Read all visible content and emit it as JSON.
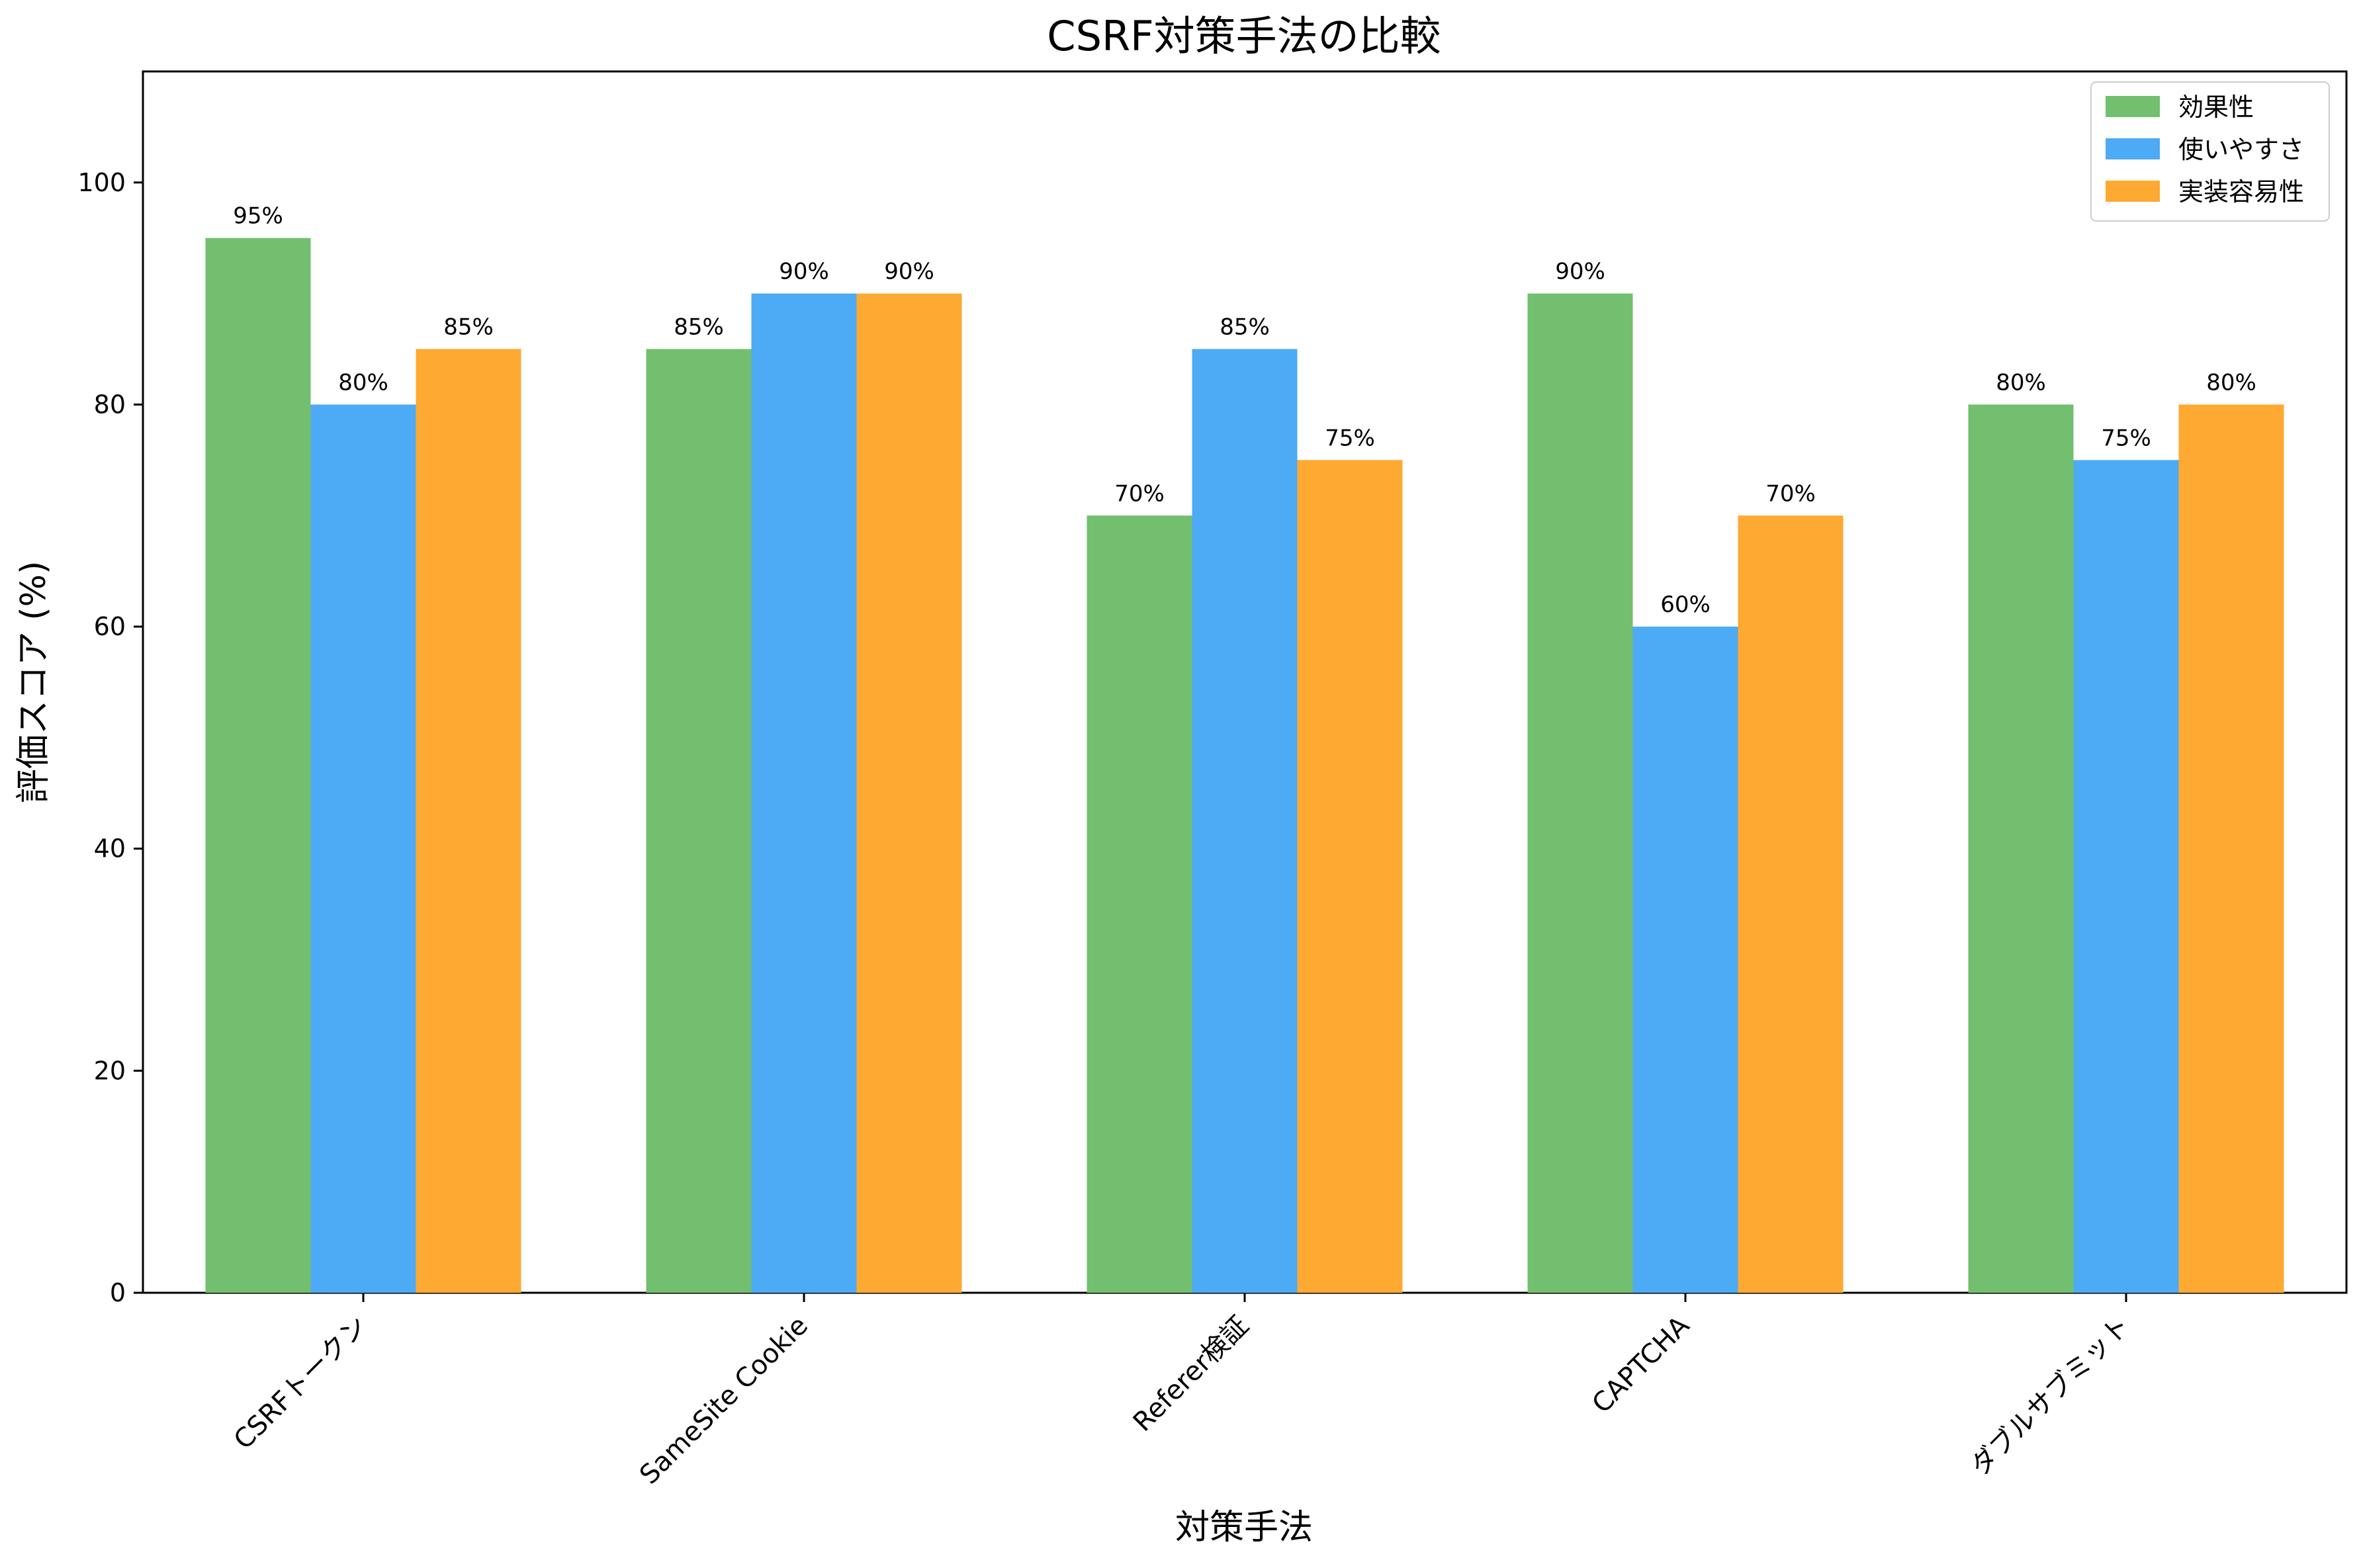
{
  "chart_data": {
    "type": "bar",
    "title": "CSRF対策手法の比較",
    "xlabel": "対策手法",
    "ylabel": "評価スコア (%)",
    "categories": [
      "CSRFトークン",
      "SameSite Cookie",
      "Referer検証",
      "CAPTCHA",
      "ダブルサブミット"
    ],
    "series": [
      {
        "name": "効果性",
        "color": "#72bf6f",
        "values": [
          95,
          85,
          70,
          90,
          80
        ]
      },
      {
        "name": "使いやすさ",
        "color": "#4daaf4",
        "values": [
          80,
          90,
          85,
          60,
          75
        ]
      },
      {
        "name": "実装容易性",
        "color": "#fea932",
        "values": [
          85,
          90,
          75,
          70,
          80
        ]
      }
    ],
    "ylim": [
      0,
      110
    ],
    "yticks": [
      0,
      20,
      40,
      60,
      80,
      100
    ],
    "value_suffix": "%",
    "grid": false,
    "legend_position": "top-right"
  }
}
